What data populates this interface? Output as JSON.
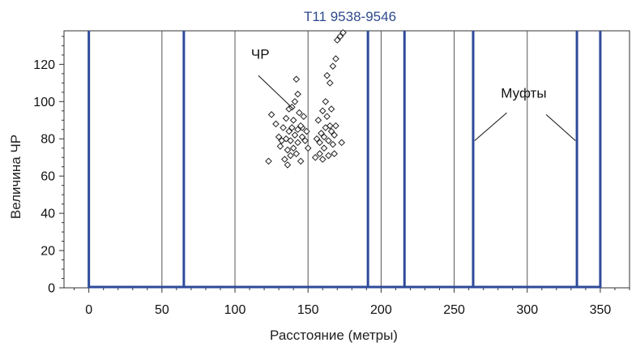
{
  "chart_data": {
    "type": "scatter",
    "title": "T11 9538-9546",
    "xlabel": "Расстояние (метры)",
    "ylabel": "Величина ЧР",
    "xlim": [
      -17,
      370
    ],
    "ylim": [
      0,
      138
    ],
    "xticks": [
      0,
      50,
      100,
      150,
      200,
      250,
      300,
      350
    ],
    "yticks": [
      0,
      20,
      40,
      60,
      80,
      100,
      120
    ],
    "grid_x": [
      50,
      100,
      150,
      200,
      250,
      300
    ],
    "couplings": [
      0,
      65,
      191,
      216,
      263,
      334,
      350
    ],
    "baseline": 0,
    "colors": {
      "couplings": "#2e4a9a",
      "baseline": "#2e4a9a",
      "grid": "#555555",
      "title": "#2e4a8c",
      "markers": "#222222"
    },
    "marker": "diamond-open",
    "points": [
      [
        125,
        93
      ],
      [
        128,
        88
      ],
      [
        130,
        81
      ],
      [
        131,
        76
      ],
      [
        133,
        86
      ],
      [
        134,
        69
      ],
      [
        135,
        80
      ],
      [
        135,
        91
      ],
      [
        136,
        74
      ],
      [
        136,
        66
      ],
      [
        137,
        84
      ],
      [
        137,
        96
      ],
      [
        138,
        79
      ],
      [
        138,
        71
      ],
      [
        139,
        86
      ],
      [
        139,
        97
      ],
      [
        140,
        90
      ],
      [
        140,
        75
      ],
      [
        141,
        82
      ],
      [
        141,
        100
      ],
      [
        142,
        72
      ],
      [
        142,
        112
      ],
      [
        143,
        85
      ],
      [
        143,
        104
      ],
      [
        143,
        78
      ],
      [
        144,
        94
      ],
      [
        145,
        68
      ],
      [
        146,
        81
      ],
      [
        146,
        86
      ],
      [
        147,
        92
      ],
      [
        148,
        79
      ],
      [
        149,
        84
      ],
      [
        150,
        75
      ],
      [
        123,
        68
      ],
      [
        132,
        79
      ],
      [
        145,
        87
      ],
      [
        155,
        70
      ],
      [
        156,
        80
      ],
      [
        157,
        90
      ],
      [
        158,
        72
      ],
      [
        158,
        78
      ],
      [
        159,
        83
      ],
      [
        160,
        69
      ],
      [
        160,
        95
      ],
      [
        161,
        81
      ],
      [
        161,
        75
      ],
      [
        162,
        86
      ],
      [
        162,
        100
      ],
      [
        163,
        92
      ],
      [
        163,
        114
      ],
      [
        164,
        79
      ],
      [
        164,
        71
      ],
      [
        165,
        87
      ],
      [
        165,
        110
      ],
      [
        166,
        96
      ],
      [
        166,
        84
      ],
      [
        167,
        77
      ],
      [
        167,
        119
      ],
      [
        168,
        72
      ],
      [
        168,
        82
      ],
      [
        169,
        123
      ],
      [
        169,
        87
      ],
      [
        170,
        133
      ],
      [
        172,
        135
      ],
      [
        173,
        78
      ],
      [
        174,
        137
      ]
    ],
    "annotations": [
      {
        "text": "ЧР",
        "leader_start": [
          116,
          114
        ],
        "leader_end": [
          140,
          96
        ],
        "text_anchor": [
          111,
          123
        ]
      },
      {
        "text": "Муфты",
        "text_anchor": [
          282,
          102
        ],
        "leaders": [
          [
            [
              264,
              79
            ],
            [
              286,
              94
            ]
          ],
          [
            [
              313,
              93
            ],
            [
              333,
              79
            ]
          ]
        ]
      }
    ]
  }
}
